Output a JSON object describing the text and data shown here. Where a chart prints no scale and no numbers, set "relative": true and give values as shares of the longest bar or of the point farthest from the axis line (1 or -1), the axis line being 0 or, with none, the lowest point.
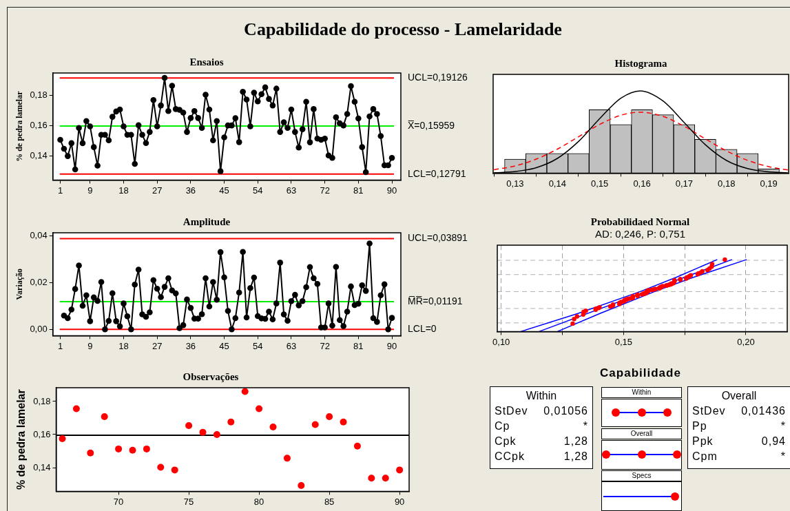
{
  "chart_data": [
    {
      "type": "other",
      "title": "Capabilidade do processo - Lamelaridade"
    },
    {
      "type": "line",
      "title": "Ensaios",
      "ylabel": "% de pedra lamelar",
      "marker": "circle",
      "color": "#000000",
      "x": [
        1,
        2,
        3,
        4,
        5,
        6,
        7,
        8,
        9,
        10,
        11,
        12,
        13,
        14,
        15,
        16,
        17,
        18,
        19,
        20,
        21,
        22,
        23,
        24,
        25,
        26,
        27,
        28,
        29,
        30,
        31,
        32,
        33,
        34,
        35,
        36,
        37,
        38,
        39,
        40,
        41,
        42,
        43,
        44,
        45,
        46,
        47,
        48,
        49,
        50,
        51,
        52,
        53,
        54,
        55,
        56,
        57,
        58,
        59,
        60,
        61,
        62,
        63,
        64,
        65,
        66,
        67,
        68,
        69,
        70,
        71,
        72,
        73,
        74,
        75,
        76,
        77,
        78,
        79,
        80,
        81,
        82,
        83,
        84,
        85,
        86,
        87,
        88,
        89,
        90
      ],
      "values": [
        0.1505,
        0.1446,
        0.1398,
        0.1483,
        0.131,
        0.1584,
        0.1483,
        0.1629,
        0.1594,
        0.1457,
        0.1335,
        0.1538,
        0.1538,
        0.1502,
        0.1657,
        0.1692,
        0.1705,
        0.1594,
        0.1538,
        0.1538,
        0.1346,
        0.1602,
        0.1538,
        0.1484,
        0.1557,
        0.1768,
        0.1594,
        0.1732,
        0.1914,
        0.1695,
        0.1862,
        0.1708,
        0.1703,
        0.1685,
        0.1557,
        0.1649,
        0.1695,
        0.1649,
        0.1584,
        0.1803,
        0.1705,
        0.1502,
        0.1629,
        0.1298,
        0.1521,
        0.16,
        0.16,
        0.1648,
        0.149,
        0.1822,
        0.1771,
        0.1594,
        0.1816,
        0.1759,
        0.1806,
        0.1851,
        0.1775,
        0.1732,
        0.1843,
        0.1557,
        0.1621,
        0.1584,
        0.1705,
        0.1557,
        0.1454,
        0.1575,
        0.1756,
        0.1489,
        0.1708,
        0.1513,
        0.1505,
        0.1513,
        0.1402,
        0.1386,
        0.1654,
        0.1614,
        0.16,
        0.1676,
        0.186,
        0.1756,
        0.1646,
        0.1457,
        0.1292,
        0.166,
        0.1708,
        0.1676,
        0.153,
        0.1337,
        0.1337,
        0.1386
      ],
      "xlim": [
        -1,
        92.4
      ],
      "xticks": [
        1,
        9,
        18,
        27,
        36,
        45,
        54,
        63,
        72,
        81,
        90
      ],
      "ylim": [
        0.124,
        0.1946
      ],
      "yticks": [
        {
          "value": 0.14,
          "label": "0,14"
        },
        {
          "value": 0.16,
          "label": "0,16"
        },
        {
          "value": 0.18,
          "label": "0,18"
        }
      ],
      "ref_lines": [
        {
          "axis": "y",
          "value": 0.19126,
          "label": "UCL=0,19126",
          "color": "#ff0000"
        },
        {
          "axis": "y",
          "value": 0.15959,
          "label": "X̅=0,15959",
          "color": "#00ee00"
        },
        {
          "axis": "y",
          "value": 0.12791,
          "label": "LCL=0,12791",
          "color": "#ff0000"
        }
      ]
    },
    {
      "type": "line",
      "title": "Amplitude",
      "ylabel": "Variação",
      "marker": "circle",
      "color": "#000000",
      "x": [
        2,
        3,
        4,
        5,
        6,
        7,
        8,
        9,
        10,
        11,
        12,
        13,
        14,
        15,
        16,
        17,
        18,
        19,
        20,
        21,
        22,
        23,
        24,
        25,
        26,
        27,
        28,
        29,
        30,
        31,
        32,
        33,
        34,
        35,
        36,
        37,
        38,
        39,
        40,
        41,
        42,
        43,
        44,
        45,
        46,
        47,
        48,
        49,
        50,
        51,
        52,
        53,
        54,
        55,
        56,
        57,
        58,
        59,
        60,
        61,
        62,
        63,
        64,
        65,
        66,
        67,
        68,
        69,
        70,
        71,
        72,
        73,
        74,
        75,
        76,
        77,
        78,
        79,
        80,
        81,
        82,
        83,
        84,
        85,
        86,
        87,
        88,
        89,
        90
      ],
      "values": [
        0.0059,
        0.0048,
        0.0085,
        0.0173,
        0.0274,
        0.0101,
        0.0146,
        0.0035,
        0.0137,
        0.0122,
        0.0203,
        0,
        0.0036,
        0.0155,
        0.0035,
        0.0013,
        0.0111,
        0.0056,
        0,
        0.0192,
        0.0256,
        0.0064,
        0.0054,
        0.0073,
        0.0211,
        0.0174,
        0.0138,
        0.0182,
        0.0219,
        0.0167,
        0.0154,
        0.0005,
        0.0018,
        0.0128,
        0.0092,
        0.0046,
        0.0046,
        0.0065,
        0.0219,
        0.0098,
        0.0203,
        0.0127,
        0.0331,
        0.0223,
        0.0079,
        0,
        0.0048,
        0.0158,
        0.0332,
        0.0051,
        0.0177,
        0.0222,
        0.0057,
        0.0047,
        0.0045,
        0.0076,
        0.0043,
        0.0111,
        0.0286,
        0.0064,
        0.0037,
        0.0121,
        0.0148,
        0.0103,
        0.0121,
        0.0181,
        0.0267,
        0.0219,
        0.0195,
        0.0008,
        0.0008,
        0.0111,
        0.0016,
        0.0268,
        0.004,
        0.0014,
        0.0076,
        0.0184,
        0.0104,
        0.011,
        0.0189,
        0.0165,
        0.0368,
        0.0048,
        0.0032,
        0.0146,
        0.0193,
        0,
        0.0049
      ],
      "xlim": [
        -1,
        92.4
      ],
      "xticks": [
        1,
        9,
        18,
        27,
        36,
        45,
        54,
        63,
        72,
        81,
        90
      ],
      "ylim": [
        -0.0027,
        0.0414
      ],
      "yticks": [
        {
          "value": 0,
          "label": "0,00"
        },
        {
          "value": 0.02,
          "label": "0,02"
        },
        {
          "value": 0.04,
          "label": "0,04"
        }
      ],
      "ref_lines": [
        {
          "axis": "y",
          "value": 0.03891,
          "label": "UCL=0,03891",
          "color": "#ff0000"
        },
        {
          "axis": "y",
          "value": 0.01191,
          "label": "M̅R̅=0,01191",
          "color": "#00ee00"
        },
        {
          "axis": "y",
          "value": 0,
          "label": "LCL=0",
          "color": "#ff0000"
        }
      ]
    },
    {
      "type": "scatter",
      "title": "Observações",
      "ylabel": "% de pedra lamelar",
      "marker": "circle",
      "color": "#ff0000",
      "x": [
        66,
        67,
        68,
        69,
        70,
        71,
        72,
        73,
        74,
        75,
        76,
        77,
        78,
        79,
        80,
        81,
        82,
        83,
        84,
        85,
        86,
        87,
        88,
        89,
        90
      ],
      "values": [
        0.1575,
        0.1756,
        0.1489,
        0.1708,
        0.1513,
        0.1505,
        0.1513,
        0.1402,
        0.1386,
        0.1654,
        0.1614,
        0.16,
        0.1676,
        0.186,
        0.1756,
        0.1646,
        0.1457,
        0.1292,
        0.166,
        0.1708,
        0.1676,
        0.153,
        0.1337,
        0.1337,
        0.1386
      ],
      "xlim": [
        65.56,
        90.68
      ],
      "xticks": [
        70,
        75,
        80,
        85,
        90
      ],
      "ylim": [
        0.1257,
        0.1883
      ],
      "yticks": [
        {
          "value": 0.14,
          "label": "0,14"
        },
        {
          "value": 0.16,
          "label": "0,16"
        },
        {
          "value": 0.18,
          "label": "0,18"
        }
      ],
      "ref_lines": [
        {
          "axis": "y",
          "value": 0.15959,
          "color": "#000000"
        }
      ]
    },
    {
      "type": "histogram",
      "title": "Histograma",
      "relative": true,
      "color": "#c0c0c0",
      "bins": [
        0.1275,
        0.1325,
        0.1375,
        0.1425,
        0.1475,
        0.1525,
        0.1575,
        0.1625,
        0.1675,
        0.1725,
        0.1775,
        0.1825,
        0.1875,
        0.1925
      ],
      "values": [
        0.17,
        0.24,
        0.24,
        0.24,
        0.77,
        0.59,
        0.77,
        0.71,
        0.59,
        0.41,
        0.29,
        0.24,
        0.05
      ],
      "series": [
        {
          "type": "line",
          "color": "#000000",
          "marker": "none",
          "line_style": "solid",
          "x": [
            0.125,
            0.13,
            0.135,
            0.14,
            0.145,
            0.15,
            0.155,
            0.1596,
            0.165,
            0.17,
            0.175,
            0.18,
            0.185,
            0.19,
            0.1945
          ],
          "values": [
            0.0047,
            0.0197,
            0.0664,
            0.179,
            0.385,
            0.662,
            0.91,
            1,
            0.877,
            0.615,
            0.345,
            0.154,
            0.0553,
            0.0158,
            0.0042
          ]
        },
        {
          "type": "line",
          "color": "#ff0000",
          "marker": "none",
          "line_style": "dashed",
          "x": [
            0.125,
            0.13,
            0.135,
            0.14,
            0.145,
            0.15,
            0.155,
            0.1596,
            0.165,
            0.17,
            0.175,
            0.18,
            0.185,
            0.19,
            0.1945
          ],
          "values": [
            0.041,
            0.088,
            0.171,
            0.292,
            0.442,
            0.592,
            0.703,
            0.74,
            0.689,
            0.569,
            0.416,
            0.27,
            0.155,
            0.079,
            0.038
          ]
        }
      ],
      "xlim": [
        0.1248,
        0.1947
      ],
      "xticks": [
        {
          "value": 0.13,
          "label": "0,13"
        },
        {
          "value": 0.14,
          "label": "0,14"
        },
        {
          "value": 0.15,
          "label": "0,15"
        },
        {
          "value": 0.16,
          "label": "0,16"
        },
        {
          "value": 0.17,
          "label": "0,17"
        },
        {
          "value": 0.18,
          "label": "0,18"
        },
        {
          "value": 0.19,
          "label": "0,19"
        }
      ]
    },
    {
      "type": "scatter",
      "title": "Probabilidaed Normal",
      "subtitle": "AD: 0,246, P: 0,751",
      "relative": true,
      "marker": "circle",
      "grid": "x",
      "series": [
        {
          "color": "#ff0000",
          "x": [
            0.1292,
            0.1298,
            0.131,
            0.1335,
            0.1337,
            0.1337,
            0.1346,
            0.1386,
            0.1386,
            0.1398,
            0.1402,
            0.1446,
            0.1454,
            0.1457,
            0.1457,
            0.1483,
            0.1483,
            0.1484,
            0.1489,
            0.149,
            0.1502,
            0.1502,
            0.1505,
            0.1505,
            0.1513,
            0.1513,
            0.1521,
            0.153,
            0.1538,
            0.1538,
            0.1538,
            0.1557,
            0.1557,
            0.1557,
            0.1557,
            0.1575,
            0.1584,
            0.1584,
            0.1584,
            0.1594,
            0.1594,
            0.1594,
            0.1594,
            0.16,
            0.16,
            0.16,
            0.1602,
            0.1614,
            0.1621,
            0.1629,
            0.1629,
            0.1646,
            0.1648,
            0.1649,
            0.1649,
            0.1654,
            0.1657,
            0.166,
            0.1676,
            0.1676,
            0.1685,
            0.1692,
            0.1695,
            0.1695,
            0.1703,
            0.1705,
            0.1708,
            0.1708,
            0.1708,
            0.1732,
            0.1732,
            0.1756,
            0.1756,
            0.1759,
            0.1768,
            0.1771,
            0.1775,
            0.1803,
            0.1806,
            0.1816,
            0.1822,
            0.1843,
            0.1851,
            0.186,
            0.1862,
            0.1914
          ],
          "values": [
            0.11,
            0.173,
            0.209,
            0.235,
            0.256,
            0.274,
            0.289,
            0.303,
            0.316,
            0.327,
            0.338,
            0.348,
            0.357,
            0.366,
            0.374,
            0.382,
            0.39,
            0.398,
            0.405,
            0.412,
            0.419,
            0.425,
            0.432,
            0.438,
            0.444,
            0.45,
            0.456,
            0.462,
            0.468,
            0.485,
            0.49,
            0.495,
            0.501,
            0.506,
            0.511,
            0.517,
            0.522,
            0.527,
            0.532,
            0.537,
            0.542,
            0.547,
            0.553,
            0.558,
            0.563,
            0.568,
            0.573,
            0.578,
            0.583,
            0.588,
            0.594,
            0.599,
            0.604,
            0.61,
            0.615,
            0.62,
            0.626,
            0.631,
            0.637,
            0.642,
            0.648,
            0.654,
            0.66,
            0.666,
            0.672,
            0.678,
            0.698,
            0.705,
            0.713,
            0.72,
            0.728,
            0.736,
            0.744,
            0.753,
            0.763,
            0.773,
            0.783,
            0.795,
            0.807,
            0.821,
            0.836,
            0.854,
            0.875,
            0.901,
            0.937,
            1
          ]
        },
        {
          "type": "line",
          "color": "#0000ff",
          "marker": "none",
          "x": [
            0.1155,
            0.1943
          ],
          "values": [
            0,
            1
          ]
        },
        {
          "type": "line",
          "color": "#0000ff",
          "marker": "none",
          "x": [
            0.108,
            0.1313,
            0.1568,
            0.1713,
            0.1883
          ],
          "values": [
            0,
            0.25,
            0.555,
            0.75,
            1
          ]
        },
        {
          "type": "line",
          "color": "#0000ff",
          "marker": "none",
          "x": [
            0.123,
            0.1403,
            0.1627,
            0.1783,
            0.2003
          ],
          "values": [
            0,
            0.25,
            0.555,
            0.75,
            1
          ]
        }
      ],
      "xlim": [
        0.0984,
        0.2169
      ],
      "xticks": [
        {
          "value": 0.1,
          "label": "0,10"
        },
        {
          "value": 0.125,
          "label": null
        },
        {
          "value": 0.15,
          "label": "0,15"
        },
        {
          "value": 0.175,
          "label": null
        },
        {
          "value": 0.2,
          "label": "0,20"
        }
      ],
      "ref_lines": [
        {
          "axis": "y",
          "value": 0.12,
          "color": "#b0b0b0",
          "line_style": "dashed"
        },
        {
          "axis": "y",
          "value": 0.32,
          "color": "#b0b0b0",
          "line_style": "dashed"
        },
        {
          "axis": "y",
          "value": 0.555,
          "color": "#b0b0b0",
          "line_style": "dashed"
        },
        {
          "axis": "y",
          "value": 0.791,
          "color": "#b0b0b0",
          "line_style": "dashed"
        },
        {
          "axis": "y",
          "value": 0.99,
          "color": "#b0b0b0",
          "line_style": "dashed"
        }
      ]
    },
    {
      "type": "other",
      "title": "Capabilidade",
      "annotations": [
        "Within",
        "StDev",
        "0,01056",
        "Cp",
        "*",
        "Cpk",
        "1,28",
        "CCpk",
        "1,28",
        "Overall",
        "StDev",
        "0,01436",
        "Pp",
        "*",
        "Ppk",
        "0,94",
        "Cpm",
        "*",
        "Within",
        "Overall",
        "Specs"
      ]
    }
  ]
}
